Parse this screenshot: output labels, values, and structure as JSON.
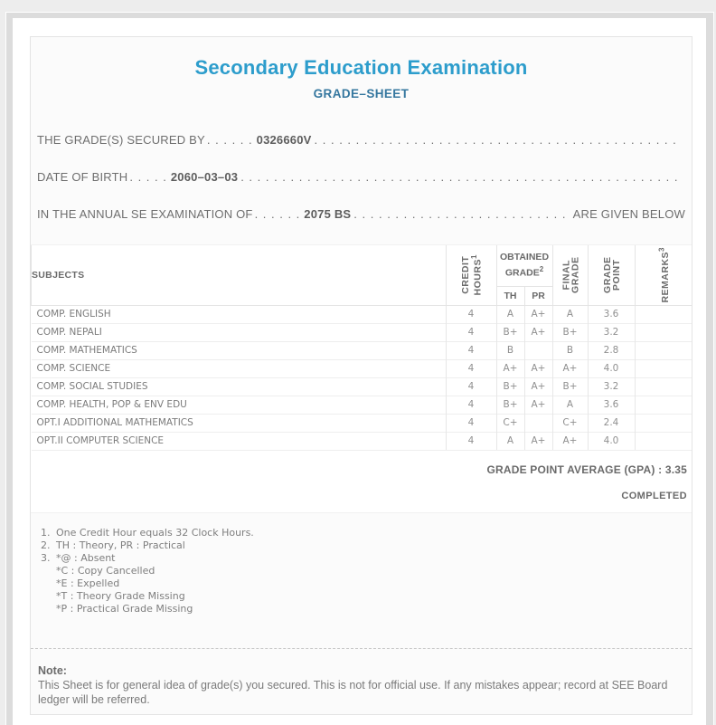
{
  "colors": {
    "title": "#2d9dcc",
    "subtitle": "#35779f",
    "frame": "#dcdcdc",
    "card_bg": "#fbfbfb",
    "text_gray": "#6e6e6e"
  },
  "header": {
    "title": "Secondary Education Examination",
    "subtitle": "GRADE–SHEET"
  },
  "info_lines": [
    {
      "label": "THE GRADE(S) SECURED BY",
      "dots_gap": ". . . . . .",
      "value": "0326660V",
      "suffix": ""
    },
    {
      "label": "DATE OF BIRTH",
      "dots_gap": ". . . . .",
      "value": "2060–03–03",
      "suffix": ""
    },
    {
      "label": "IN THE ANNUAL SE EXAMINATION OF",
      "dots_gap": ". . . . . .",
      "value": "2075 BS",
      "suffix": "ARE GIVEN BELOW"
    }
  ],
  "dots_fill": ". . . . . . . . . . . . . . . . . . . . . . . . . . . . . . . . . . . . . . . . . . . . . . . . . . . . . . . . . . . . . . . . . . . . . . . . . . . . . . . . . . . . . . . . . . . .",
  "table": {
    "subjects_header": "SUBJECTS",
    "col_credit": {
      "line1": "CREDIT",
      "line2": "HOURS",
      "sup": "1"
    },
    "obtained": {
      "line1": "OBTAINED",
      "line2": "GRADE",
      "sup": "2",
      "th": "TH",
      "pr": "PR"
    },
    "col_final": {
      "line1": "FINAL",
      "line2": "GRADE"
    },
    "col_gp": {
      "line1": "GRADE",
      "line2": "POINT"
    },
    "col_remarks": {
      "label": "REMARKS",
      "sup": "3"
    },
    "rows": [
      {
        "subject": "COMP. ENGLISH",
        "credit": "4",
        "th": "A",
        "pr": "A+",
        "final": "A",
        "gp": "3.6",
        "remarks": ""
      },
      {
        "subject": "COMP. NEPALI",
        "credit": "4",
        "th": "B+",
        "pr": "A+",
        "final": "B+",
        "gp": "3.2",
        "remarks": ""
      },
      {
        "subject": "COMP. MATHEMATICS",
        "credit": "4",
        "th": "B",
        "pr": "",
        "final": "B",
        "gp": "2.8",
        "remarks": ""
      },
      {
        "subject": "COMP. SCIENCE",
        "credit": "4",
        "th": "A+",
        "pr": "A+",
        "final": "A+",
        "gp": "4.0",
        "remarks": ""
      },
      {
        "subject": "COMP. SOCIAL STUDIES",
        "credit": "4",
        "th": "B+",
        "pr": "A+",
        "final": "B+",
        "gp": "3.2",
        "remarks": ""
      },
      {
        "subject": "COMP. HEALTH, POP & ENV EDU",
        "credit": "4",
        "th": "B+",
        "pr": "A+",
        "final": "A",
        "gp": "3.6",
        "remarks": ""
      },
      {
        "subject": "OPT.I ADDITIONAL MATHEMATICS",
        "credit": "4",
        "th": "C+",
        "pr": "",
        "final": "C+",
        "gp": "2.4",
        "remarks": ""
      },
      {
        "subject": "OPT.II COMPUTER SCIENCE",
        "credit": "4",
        "th": "A",
        "pr": "A+",
        "final": "A+",
        "gp": "4.0",
        "remarks": ""
      }
    ]
  },
  "summary": {
    "gpa_label": "GRADE POINT AVERAGE (GPA) :",
    "gpa_value": "3.35",
    "status": "COMPLETED"
  },
  "footnotes": [
    {
      "marker": "1.",
      "text": "One Credit Hour equals 32 Clock Hours."
    },
    {
      "marker": "2.",
      "text": "TH : Theory, PR : Practical"
    },
    {
      "marker": "3.",
      "text": "*@ : Absent"
    },
    {
      "marker": "",
      "text": "*C : Copy Cancelled"
    },
    {
      "marker": "",
      "text": "*E : Expelled"
    },
    {
      "marker": "",
      "text": "*T : Theory Grade Missing"
    },
    {
      "marker": "",
      "text": "*P : Practical Grade Missing"
    }
  ],
  "note": {
    "heading": "Note:",
    "body": "This Sheet is for general idea of grade(s) you secured. This is not for official use. If any mistakes appear; record at SEE Board ledger will be referred."
  }
}
